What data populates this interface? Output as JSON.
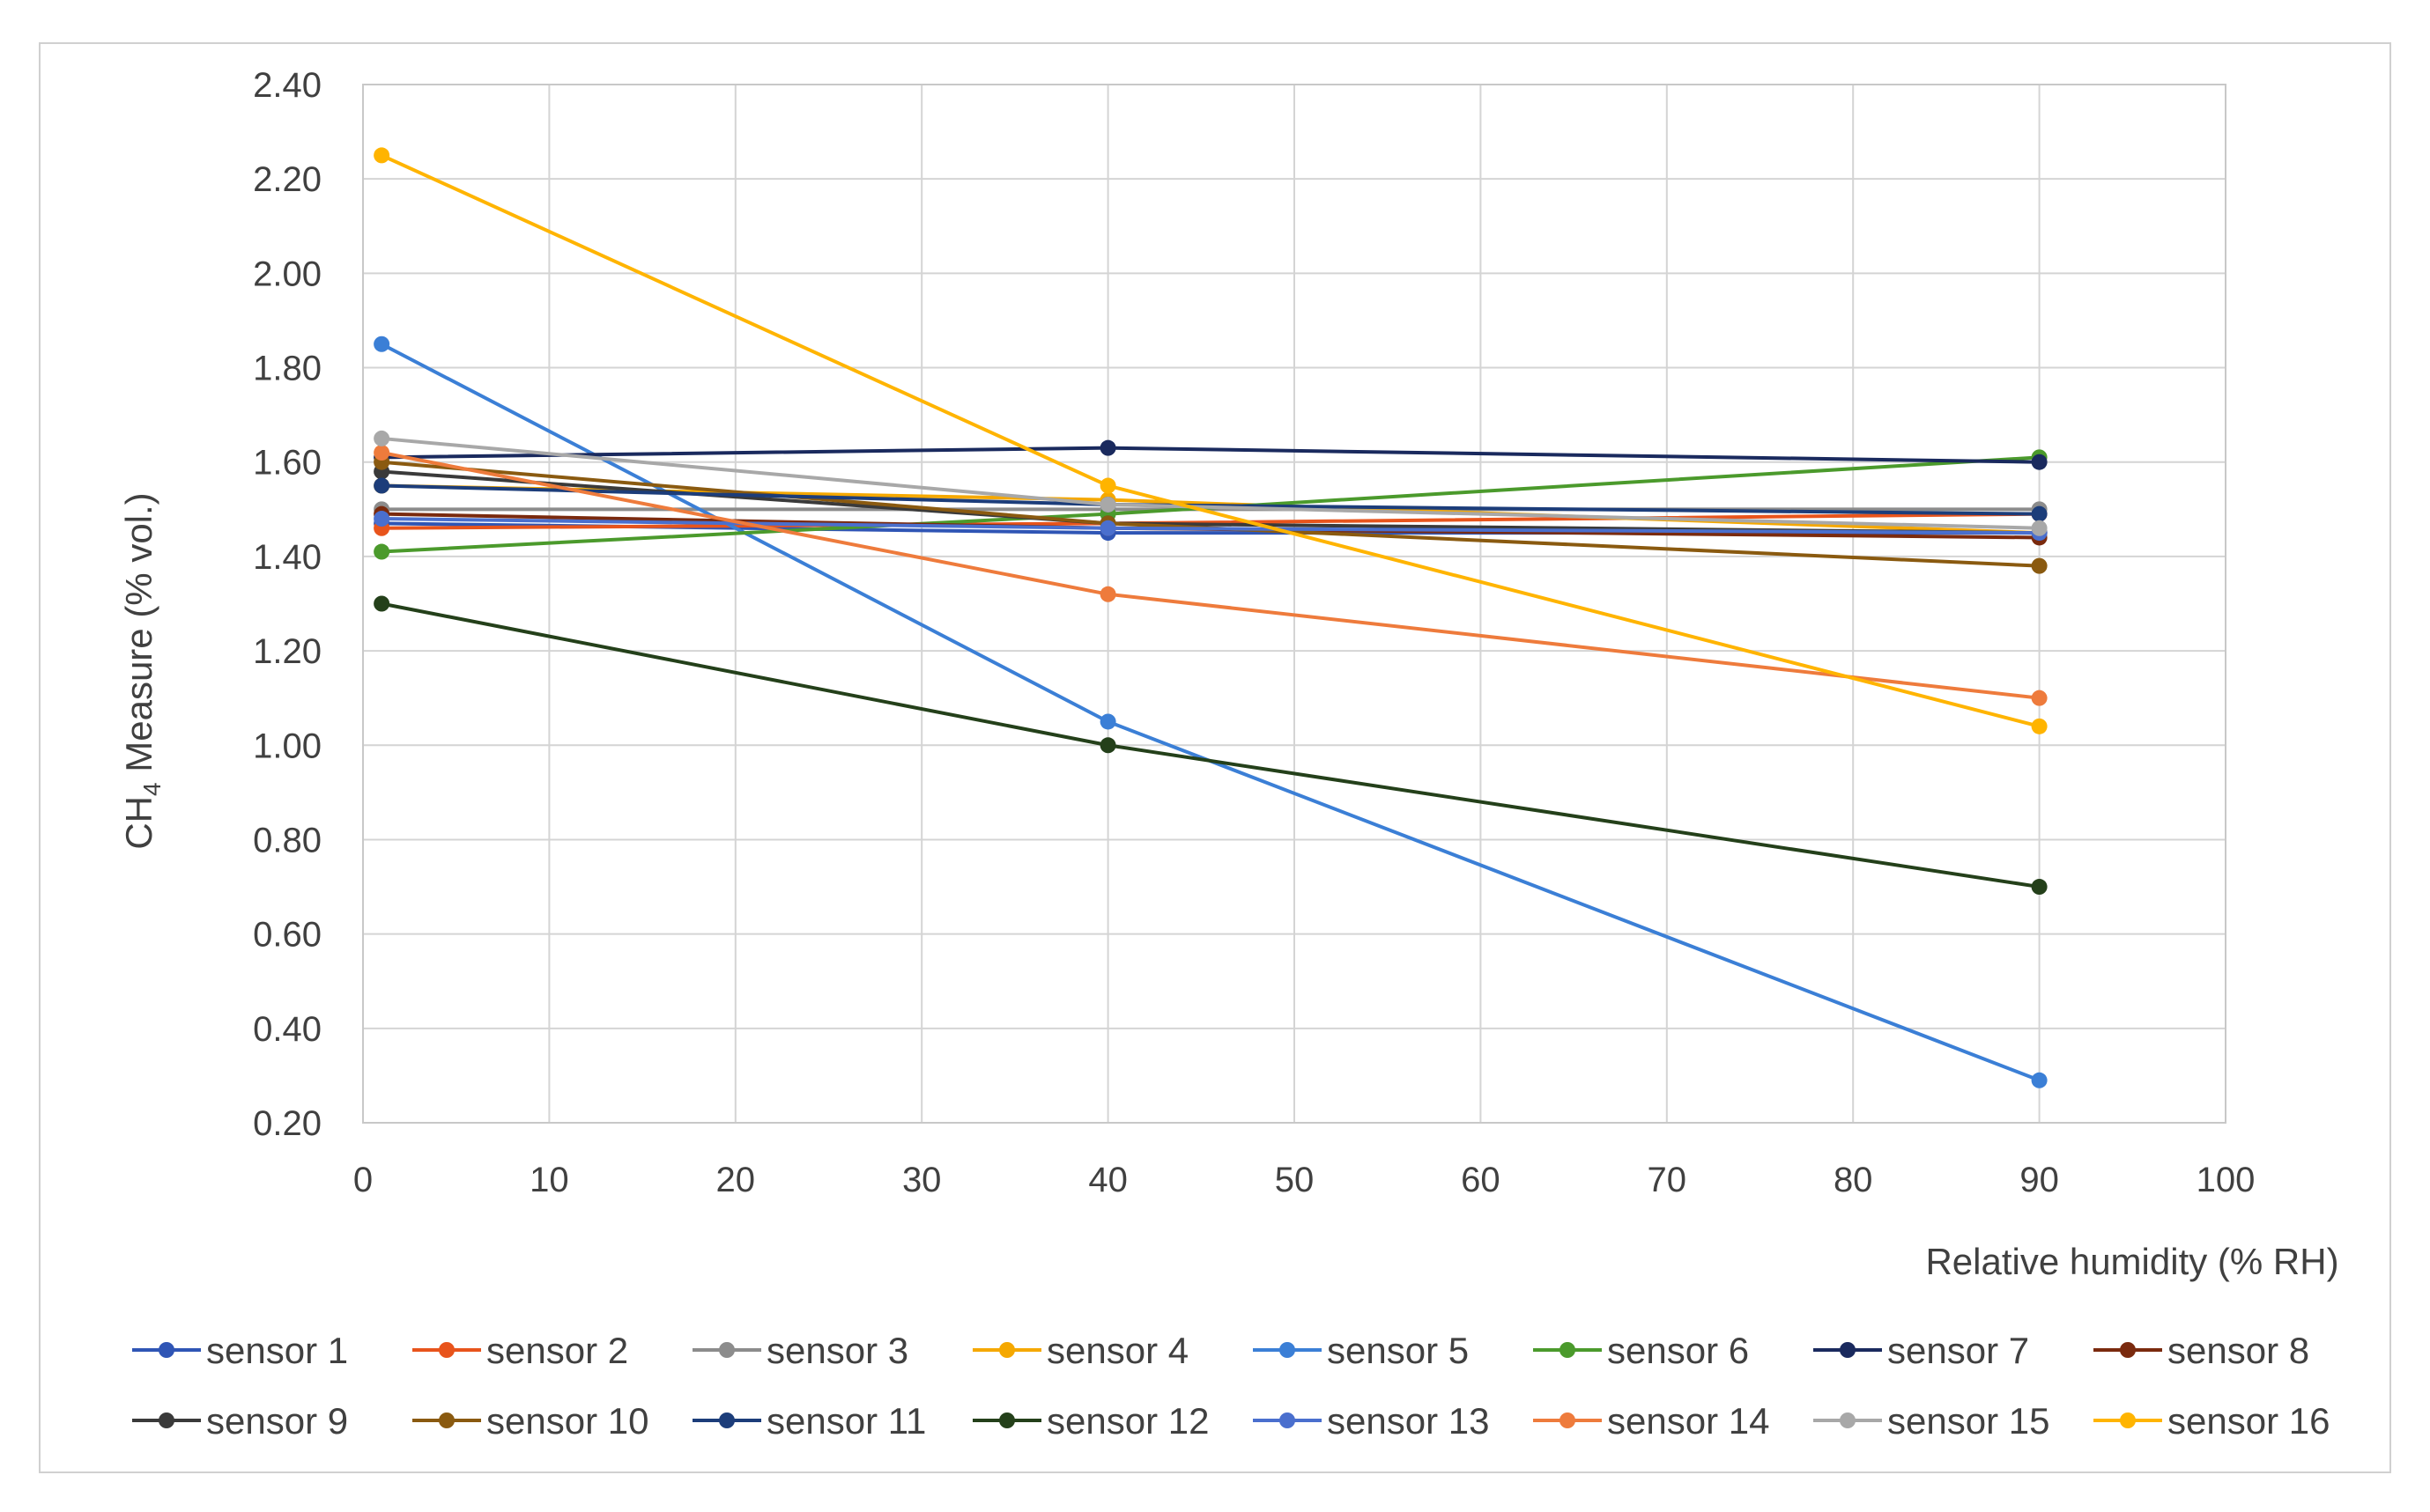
{
  "chart_data": {
    "type": "line",
    "title": "",
    "xlabel": "Relative humidity (% RH)",
    "ylabel_main": "CH",
    "ylabel_sub": "4",
    "ylabel_rest": " Measure (% vol.)",
    "xlim": [
      0,
      100
    ],
    "ylim": [
      0.2,
      2.4
    ],
    "xticks": [
      0,
      10,
      20,
      30,
      40,
      50,
      60,
      70,
      80,
      90,
      100
    ],
    "yticks": [
      "0.20",
      "0.40",
      "0.60",
      "0.80",
      "1.00",
      "1.20",
      "1.40",
      "1.60",
      "1.80",
      "2.00",
      "2.20",
      "2.40"
    ],
    "grid": true,
    "legend_position": "bottom",
    "x": [
      1,
      40,
      90
    ],
    "series": [
      {
        "name": "sensor 1",
        "color": "#2f55b5",
        "values": [
          1.47,
          1.45,
          1.45
        ]
      },
      {
        "name": "sensor 2",
        "color": "#e8541c",
        "values": [
          1.46,
          1.47,
          1.49
        ]
      },
      {
        "name": "sensor 3",
        "color": "#8c8c8c",
        "values": [
          1.5,
          1.5,
          1.5
        ]
      },
      {
        "name": "sensor 4",
        "color": "#f5a800",
        "values": [
          1.55,
          1.52,
          1.45
        ]
      },
      {
        "name": "sensor 5",
        "color": "#3b7fd6",
        "values": [
          1.85,
          1.05,
          0.29
        ]
      },
      {
        "name": "sensor 6",
        "color": "#4b9a2c",
        "values": [
          1.41,
          1.49,
          1.61
        ]
      },
      {
        "name": "sensor 7",
        "color": "#1a2a5e",
        "values": [
          1.61,
          1.63,
          1.6
        ]
      },
      {
        "name": "sensor 8",
        "color": "#7a2a0e",
        "values": [
          1.49,
          1.46,
          1.44
        ]
      },
      {
        "name": "sensor 9",
        "color": "#3a3a3a",
        "values": [
          1.58,
          1.47,
          1.45
        ]
      },
      {
        "name": "sensor 10",
        "color": "#8a5a10",
        "values": [
          1.6,
          1.47,
          1.38
        ]
      },
      {
        "name": "sensor 11",
        "color": "#1c3d7a",
        "values": [
          1.55,
          1.51,
          1.49
        ]
      },
      {
        "name": "sensor 12",
        "color": "#24401a",
        "values": [
          1.3,
          1.0,
          0.7
        ]
      },
      {
        "name": "sensor 13",
        "color": "#4a6fce",
        "values": [
          1.48,
          1.46,
          1.45
        ]
      },
      {
        "name": "sensor 14",
        "color": "#ee7b3c",
        "values": [
          1.62,
          1.32,
          1.1
        ]
      },
      {
        "name": "sensor 15",
        "color": "#a8a8a8",
        "values": [
          1.65,
          1.51,
          1.46
        ]
      },
      {
        "name": "sensor 16",
        "color": "#ffb400",
        "values": [
          2.25,
          1.55,
          1.04
        ]
      }
    ]
  }
}
